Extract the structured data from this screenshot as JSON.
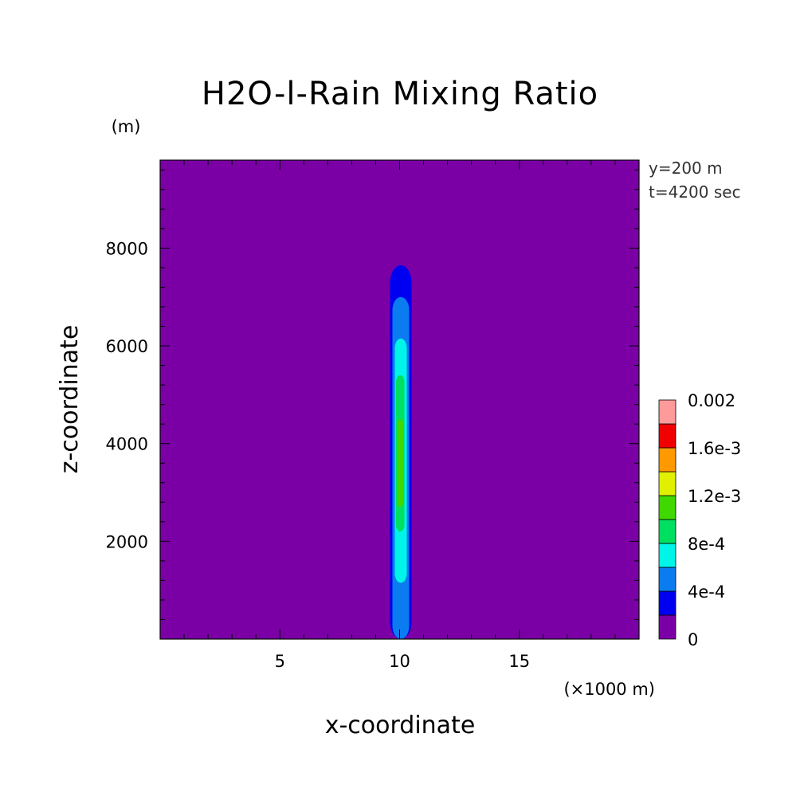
{
  "chart_data": {
    "type": "heatmap",
    "title": "H2O-l-Rain Mixing Ratio",
    "xlabel": "x-coordinate",
    "ylabel": "z-coordinate",
    "x_unit": "(×1000 m)",
    "y_unit": "(m)",
    "annotations": [
      "y=200 m",
      "t=4200 sec"
    ],
    "xlim": [
      0,
      20
    ],
    "ylim": [
      0,
      9800
    ],
    "x_ticks": [
      5,
      10,
      15
    ],
    "y_ticks": [
      2000,
      4000,
      6000,
      8000
    ],
    "colorbar": {
      "levels": [
        0,
        0.0002,
        0.0004,
        0.0006,
        0.0008,
        0.001,
        0.0012,
        0.0014,
        0.0016,
        0.0018,
        0.002
      ],
      "labels": [
        "0",
        "4e-4",
        "8e-4",
        "1.2e-3",
        "1.6e-3",
        "0.002"
      ],
      "label_values": [
        0,
        0.0004,
        0.0008,
        0.0012,
        0.0016,
        0.002
      ],
      "colors": [
        "#7a00a6",
        "#0000f0",
        "#0a7cf0",
        "#00f5e8",
        "#00e060",
        "#40d800",
        "#e0f000",
        "#ff9900",
        "#f00000",
        "#ff9a9a"
      ]
    },
    "contours": [
      {
        "level_index": 1,
        "x_range": [
          9.6,
          10.5
        ],
        "z_range": [
          0,
          7650
        ],
        "peak_x": 10.0
      },
      {
        "level_index": 2,
        "x_range": [
          9.7,
          10.4
        ],
        "z_range": [
          0,
          7000
        ],
        "peak_x": 10.0
      },
      {
        "level_index": 3,
        "x_range": [
          9.8,
          10.3
        ],
        "z_range": [
          1150,
          6150
        ],
        "peak_x": 10.0
      },
      {
        "level_index": 4,
        "x_range": [
          9.85,
          10.2
        ],
        "z_range": [
          2200,
          5400
        ],
        "peak_x": 10.0
      },
      {
        "level_index": 5,
        "x_range": [
          9.9,
          10.15
        ],
        "z_range": [
          2700,
          4500
        ],
        "peak_x": 10.0
      }
    ]
  }
}
